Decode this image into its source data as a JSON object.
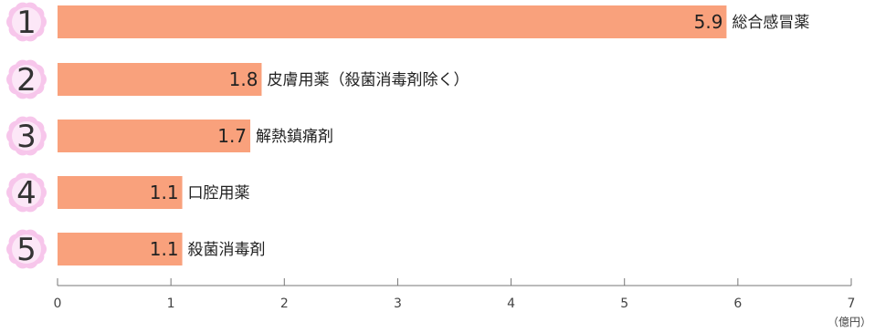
{
  "colors": {
    "bar": "#F9A17C",
    "badge_petal": "#F7C6EB",
    "badge_center": "#FCE7F7",
    "axis": "#777777",
    "text": "#222222"
  },
  "chart_data": {
    "type": "bar",
    "orientation": "horizontal",
    "ranks": [
      "1",
      "2",
      "3",
      "4",
      "5"
    ],
    "categories": [
      "総合感冒薬",
      "皮膚用薬（殺菌消毒剤除く）",
      "解熱鎮痛剤",
      "口腔用薬",
      "殺菌消毒剤"
    ],
    "values": [
      5.9,
      1.8,
      1.7,
      1.1,
      1.1
    ],
    "value_labels": [
      "5.9",
      "1.8",
      "1.7",
      "1.1",
      "1.1"
    ],
    "xlim": [
      0,
      7
    ],
    "xticks": [
      "0",
      "1",
      "2",
      "3",
      "4",
      "5",
      "6",
      "7"
    ],
    "unit_label": "（億円）",
    "grid": false,
    "legend": "none"
  }
}
